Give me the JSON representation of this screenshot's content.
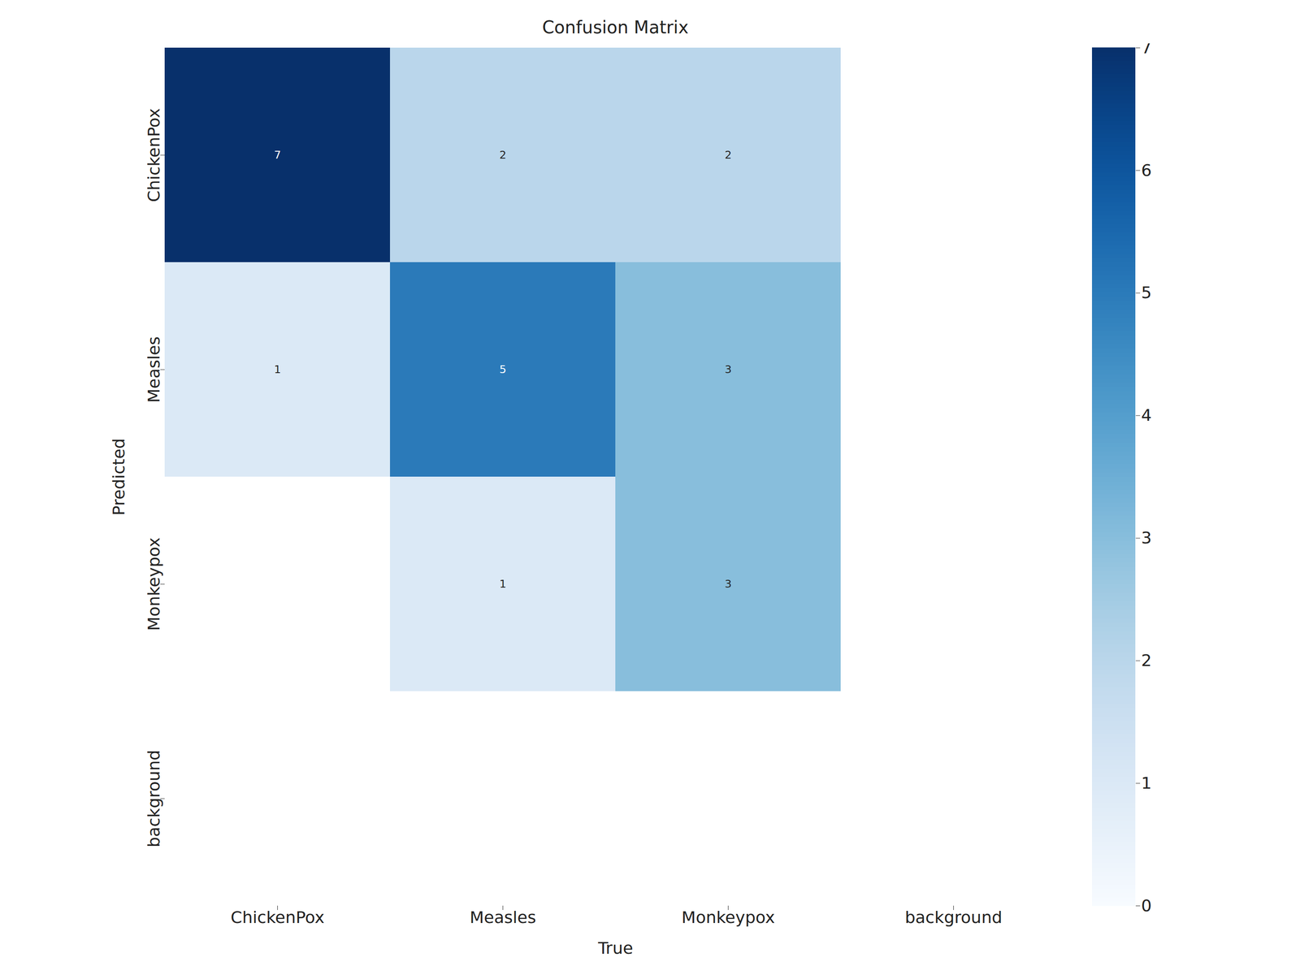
{
  "chart_data": {
    "type": "heatmap",
    "title": "Confusion Matrix",
    "xlabel": "True",
    "ylabel": "Predicted",
    "x_categories": [
      "ChickenPox",
      "Measles",
      "Monkeypox",
      "background"
    ],
    "y_categories": [
      "ChickenPox",
      "Measles",
      "Monkeypox",
      "background"
    ],
    "cells": [
      [
        7,
        2,
        2,
        null
      ],
      [
        1,
        5,
        3,
        null
      ],
      [
        null,
        1,
        3,
        null
      ],
      [
        null,
        null,
        null,
        null
      ]
    ],
    "color": "Blues",
    "data_labels": true,
    "colorbar": {
      "range": [
        0,
        7
      ],
      "ticks": [
        0,
        1,
        2,
        3,
        4,
        5,
        6,
        7
      ]
    }
  }
}
